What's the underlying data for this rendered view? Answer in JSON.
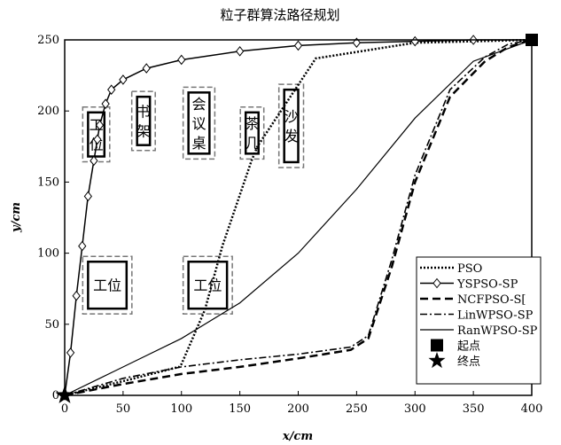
{
  "chart_data": {
    "type": "line",
    "title": "粒子群算法路径规划",
    "xlabel": "x/cm",
    "ylabel": "y/cm",
    "xlim": [
      0,
      400
    ],
    "ylim": [
      0,
      250
    ],
    "xticks": [
      "0",
      "50",
      "100",
      "150",
      "200",
      "250",
      "300",
      "350",
      "400"
    ],
    "yticks": [
      "0",
      "50",
      "100",
      "150",
      "200",
      "250"
    ],
    "grid": false,
    "legend_position": "bottom-right",
    "obstacles": [
      {
        "label": "工位",
        "x1": 20,
        "x2": 34,
        "y1": 168,
        "y2": 199
      },
      {
        "label": "书架",
        "x1": 62,
        "x2": 73,
        "y1": 176,
        "y2": 210
      },
      {
        "label": "会议桌",
        "x1": 106,
        "x2": 124,
        "y1": 170,
        "y2": 213
      },
      {
        "label": "茶几",
        "x1": 155,
        "x2": 166,
        "y1": 170,
        "y2": 199
      },
      {
        "label": "沙发",
        "x1": 188,
        "x2": 200,
        "y1": 164,
        "y2": 215
      },
      {
        "label": "工位",
        "x1": 20,
        "x2": 53,
        "y1": 61,
        "y2": 94
      },
      {
        "label": "工位",
        "x1": 106,
        "x2": 139,
        "y1": 61,
        "y2": 94
      }
    ],
    "series": [
      {
        "name": "PSO",
        "style": "dotted",
        "x": [
          0,
          50,
          98,
          100,
          120,
          135,
          160,
          165,
          215,
          300,
          400
        ],
        "y": [
          0,
          10,
          20,
          22,
          60,
          105,
          165,
          175,
          237,
          248,
          250
        ]
      },
      {
        "name": "YSPSO-SP",
        "style": "diamond",
        "x": [
          0,
          5,
          10,
          15,
          20,
          25,
          28,
          30,
          35,
          40,
          50,
          70,
          100,
          150,
          200,
          250,
          300,
          350,
          400
        ],
        "y": [
          0,
          30,
          70,
          105,
          140,
          165,
          180,
          190,
          205,
          215,
          222,
          230,
          236,
          242,
          246,
          248,
          249,
          250,
          250
        ]
      },
      {
        "name": "NCFPSO-S[",
        "style": "dashed",
        "x": [
          0,
          50,
          100,
          150,
          200,
          245,
          260,
          280,
          300,
          330,
          360,
          380,
          400
        ],
        "y": [
          0,
          8,
          15,
          20,
          26,
          32,
          40,
          90,
          150,
          210,
          235,
          245,
          250
        ]
      },
      {
        "name": "LinWPSO-SP",
        "style": "dashdot",
        "x": [
          0,
          50,
          100,
          150,
          200,
          245,
          260,
          280,
          300,
          330,
          360,
          380,
          400
        ],
        "y": [
          0,
          12,
          20,
          25,
          29,
          34,
          42,
          95,
          155,
          215,
          238,
          247,
          250
        ]
      },
      {
        "name": "RanWPSO-SP",
        "style": "solid",
        "x": [
          0,
          30,
          60,
          100,
          150,
          200,
          250,
          300,
          350,
          400
        ],
        "y": [
          0,
          12,
          24,
          40,
          65,
          100,
          145,
          195,
          235,
          250
        ]
      }
    ],
    "start_label": "起点",
    "end_label": "终点",
    "start_point": [
      400,
      250
    ],
    "end_point": [
      0,
      0
    ]
  }
}
